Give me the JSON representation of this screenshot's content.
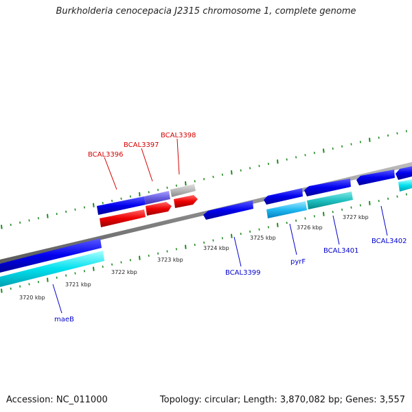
{
  "title": "Burkholderia cenocepacia J2315 chromosome 1, complete genome",
  "footer": {
    "accession": "Accession: NC_011000",
    "summary": "Topology: circular; Length: 3,870,082 bp; Genes: 3,557"
  },
  "colors": {
    "backbone": "#8a8a8a",
    "tick_green": "#1f8a1f",
    "cds_forward": "#0000ee",
    "cds_reverse": "#ee0000",
    "gene_forward": "#00ddee",
    "pseudo_grey": "#b8b8b8",
    "label_red": "#d40000",
    "label_blue": "#0000cc"
  },
  "scale_labels": [
    "3720 kbp",
    "3721 kbp",
    "3722 kbp",
    "3723 kbp",
    "3724 kbp",
    "3725 kbp",
    "3726 kbp",
    "3727 kbp"
  ],
  "top_labels": [
    "BCAL3396",
    "BCAL3397",
    "BCAL3398"
  ],
  "bottom_labels": [
    "maeB",
    "BCAL3399",
    "pyrF",
    "BCAL3401",
    "BCAL3402"
  ]
}
